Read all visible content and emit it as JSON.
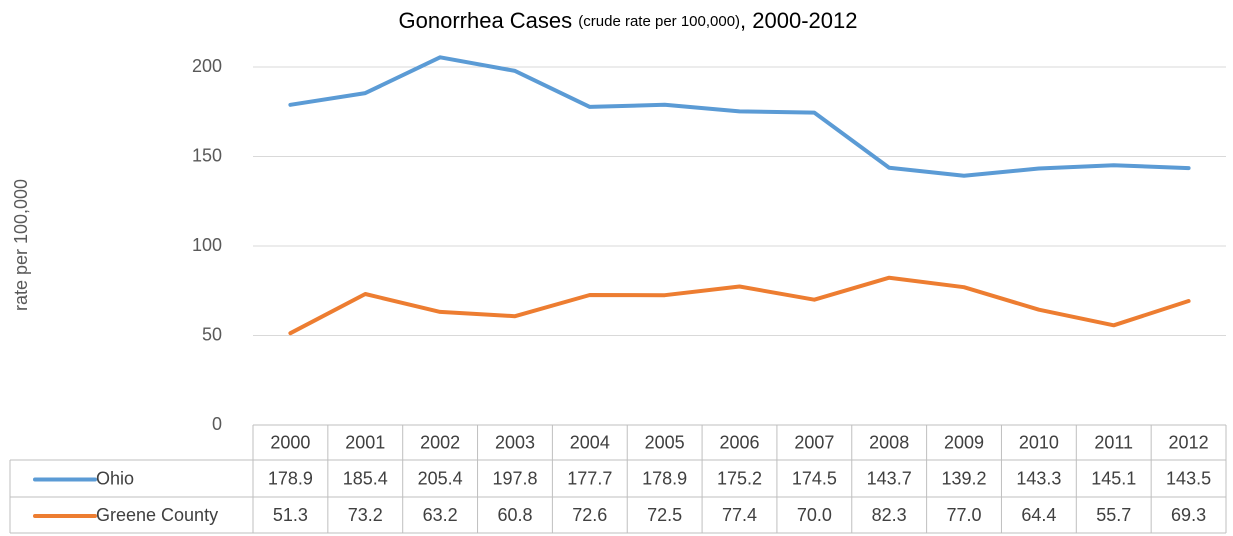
{
  "chart_data": {
    "type": "line",
    "title": "Gonorrhea Cases",
    "title_note": "(crude rate per 100,000)",
    "title_suffix": ", 2000-2012",
    "y_label": "rate per 100,000",
    "categories": [
      "2000",
      "2001",
      "2002",
      "2003",
      "2004",
      "2005",
      "2006",
      "2007",
      "2008",
      "2009",
      "2010",
      "2011",
      "2012"
    ],
    "series": [
      {
        "name": "Ohio",
        "color": "#5b9bd5",
        "values": [
          178.9,
          185.4,
          205.4,
          197.8,
          177.7,
          178.9,
          175.2,
          174.5,
          143.7,
          139.2,
          143.3,
          145.1,
          143.5
        ],
        "value_labels": [
          "178.9",
          "185.4",
          "205.4",
          "197.8",
          "177.7",
          "178.9",
          "175.2",
          "174.5",
          "143.7",
          "139.2",
          "143.3",
          "145.1",
          "143.5"
        ]
      },
      {
        "name": "Greene County",
        "color": "#ed7d31",
        "values": [
          51.3,
          73.2,
          63.2,
          60.8,
          72.6,
          72.5,
          77.4,
          70,
          82.3,
          77,
          64.4,
          55.7,
          69.3
        ],
        "value_labels": [
          "51.3",
          "73.2",
          "63.2",
          "60.8",
          "72.6",
          "72.5",
          "77.4",
          "70.0",
          "82.3",
          "77.0",
          "64.4",
          "55.7",
          "69.3"
        ]
      }
    ],
    "ylim": [
      0,
      200
    ],
    "yticks": [
      0,
      50,
      100,
      150,
      200
    ],
    "grid": true
  }
}
